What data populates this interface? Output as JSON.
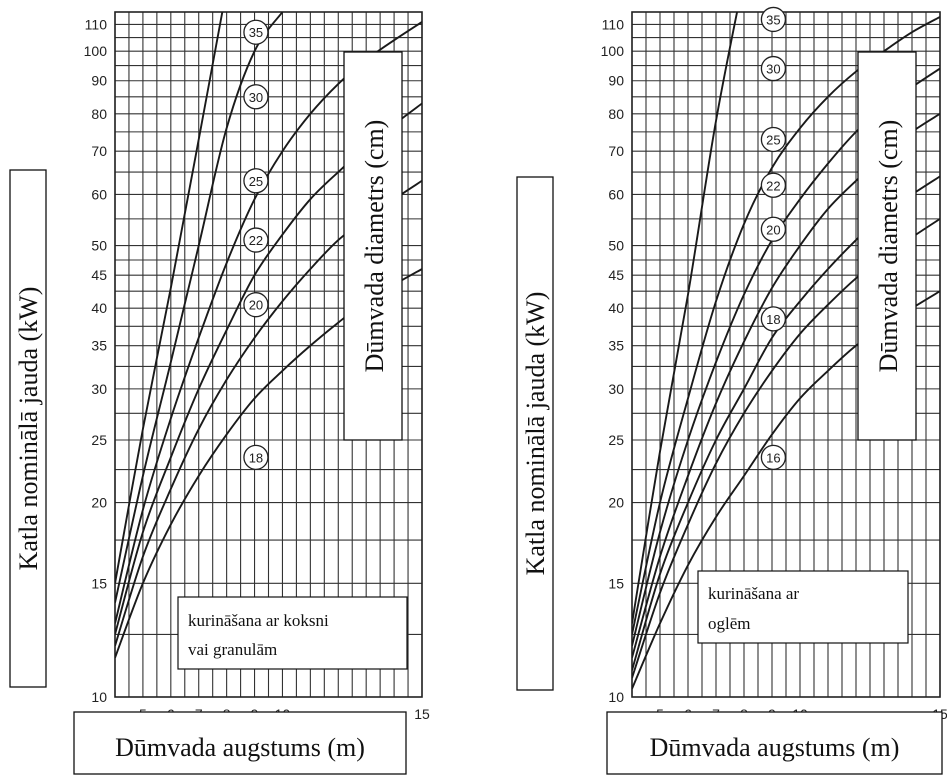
{
  "chart_data": [
    {
      "type": "line",
      "y_axis_label": "Katla nominālā jauda (kW)",
      "x_axis_label": "Dūmvada augstums (m)",
      "curve_group_label": "Dūmvada diametrs (cm)",
      "note": "kurināšana ar koksni vai granulām",
      "x_ticks": [
        "5",
        "6",
        "7",
        "8",
        "9",
        "10",
        "15"
      ],
      "y_ticks": [
        "10",
        "15",
        "20",
        "25",
        "30",
        "35",
        "40",
        "45",
        "50",
        "60",
        "70",
        "80",
        "90",
        "100",
        "110"
      ],
      "y_scale": "log",
      "xlim": [
        4,
        15
      ],
      "ylim": [
        10,
        115
      ],
      "grid": true,
      "curve_labels": [
        "35",
        "30",
        "25",
        "22",
        "20",
        "18"
      ],
      "series": [
        {
          "name": "35",
          "x": [
            4,
            5,
            6,
            7,
            8
          ],
          "y": [
            15,
            26,
            43,
            73,
            125
          ]
        },
        {
          "name": "30",
          "x": [
            4,
            5,
            6,
            7,
            8,
            9,
            10
          ],
          "y": [
            14,
            22,
            33,
            50,
            76,
            100,
            115
          ]
        },
        {
          "name": "25",
          "x": [
            4,
            5,
            6,
            7,
            8,
            9,
            10,
            11,
            12,
            13,
            14,
            15
          ],
          "y": [
            13,
            19.5,
            27,
            36,
            47,
            59,
            70,
            80,
            89,
            97,
            104,
            111
          ]
        },
        {
          "name": "22",
          "x": [
            4,
            5,
            6,
            7,
            8,
            9,
            10,
            11,
            12,
            13,
            14,
            15
          ],
          "y": [
            12.5,
            18,
            23.5,
            30,
            37,
            45,
            52,
            59,
            65,
            71,
            77,
            83
          ]
        },
        {
          "name": "20",
          "x": [
            4,
            5,
            6,
            7,
            8,
            9,
            10,
            11,
            12,
            13,
            14,
            15
          ],
          "y": [
            12,
            16.5,
            21,
            26,
            31,
            36,
            41,
            46,
            51,
            55,
            59,
            63
          ]
        },
        {
          "name": "18",
          "x": [
            4,
            5,
            6,
            7,
            8,
            9,
            10,
            11,
            12,
            13,
            14,
            15
          ],
          "y": [
            11.5,
            15,
            18.5,
            22,
            25.5,
            29,
            32,
            35,
            38,
            41,
            43.5,
            46
          ]
        }
      ]
    },
    {
      "type": "line",
      "y_axis_label": "Katla nominālā jauda (kW)",
      "x_axis_label": "Dūmvada augstums (m)",
      "curve_group_label": "Dūmvada diametrs (cm)",
      "note": "kurināšana ar oglēm",
      "x_ticks": [
        "5",
        "6",
        "7",
        "8",
        "9",
        "10",
        "15"
      ],
      "y_ticks": [
        "10",
        "15",
        "20",
        "25",
        "30",
        "35",
        "40",
        "45",
        "50",
        "60",
        "70",
        "80",
        "90",
        "100",
        "110"
      ],
      "y_scale": "log",
      "xlim": [
        4,
        15
      ],
      "ylim": [
        10,
        115
      ],
      "grid": true,
      "curve_labels": [
        "35",
        "30",
        "25",
        "22",
        "20",
        "18",
        "16"
      ],
      "series": [
        {
          "name": "35",
          "x": [
            4,
            5,
            6,
            7,
            8
          ],
          "y": [
            13,
            24,
            42,
            78,
            130
          ]
        },
        {
          "name": "30",
          "x": [
            4,
            5,
            6,
            7,
            8,
            9,
            10,
            11,
            12,
            13,
            14,
            15
          ],
          "y": [
            12.5,
            20,
            29,
            41,
            54,
            66,
            76,
            85,
            93,
            100,
            107,
            113
          ]
        },
        {
          "name": "25",
          "x": [
            4,
            5,
            6,
            7,
            8,
            9,
            10,
            11,
            12,
            13,
            14,
            15
          ],
          "y": [
            12,
            18,
            25,
            33,
            42,
            51,
            59,
            67,
            75,
            82,
            88,
            94
          ]
        },
        {
          "name": "22",
          "x": [
            4,
            5,
            6,
            7,
            8,
            9,
            10,
            11,
            12,
            13,
            14,
            15
          ],
          "y": [
            11.5,
            16.5,
            22,
            28.5,
            35.5,
            43,
            50,
            57,
            63,
            69,
            75,
            80
          ]
        },
        {
          "name": "20",
          "x": [
            4,
            5,
            6,
            7,
            8,
            9,
            10,
            11,
            12,
            13,
            14,
            15
          ],
          "y": [
            11,
            15.5,
            20,
            25,
            30,
            36,
            41,
            46,
            51,
            56,
            60,
            64
          ]
        },
        {
          "name": "18",
          "x": [
            4,
            5,
            6,
            7,
            8,
            9,
            10,
            11,
            12,
            13,
            14,
            15
          ],
          "y": [
            10.7,
            14.5,
            18.5,
            23,
            27.5,
            32,
            36.5,
            40.5,
            44.5,
            48,
            51.5,
            55
          ]
        },
        {
          "name": "16",
          "x": [
            4,
            5,
            6,
            7,
            8,
            9,
            10,
            11,
            12,
            13,
            14,
            15
          ],
          "y": [
            10.3,
            13,
            16,
            19,
            22,
            25.5,
            29,
            32,
            35,
            37.5,
            40,
            42.5
          ]
        }
      ]
    }
  ]
}
